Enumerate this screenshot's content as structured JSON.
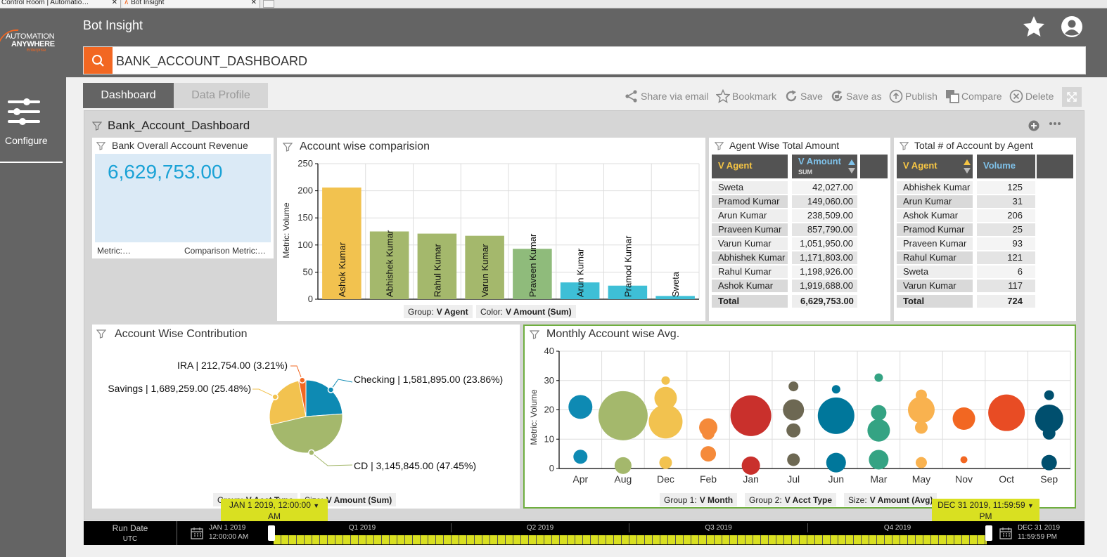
{
  "browser": {
    "tabs": [
      "Control Room | Automatio…",
      "Bot Insight"
    ]
  },
  "header": {
    "app_title": "Bot Insight",
    "search_value": "BANK_ACCOUNT_DASHBOARD",
    "logo_line1": "AUTOMATION",
    "logo_line2": "ANYWHERE",
    "logo_line3": "Enterprise"
  },
  "sidebar": {
    "configure_label": "Configure"
  },
  "tabs": {
    "dashboard": "Dashboard",
    "data_profile": "Data Profile"
  },
  "toolbar": {
    "share": "Share via email",
    "bookmark": "Bookmark",
    "save": "Save",
    "save_as": "Save as",
    "publish": "Publish",
    "compare": "Compare",
    "delete": "Delete"
  },
  "dashboard": {
    "title": "Bank_Account_Dashboard"
  },
  "kpi": {
    "title": "Bank Overall Account Revenue",
    "value": "6,629,753.00",
    "metric": "Metric:…",
    "comparison": "Comparison Metric:…"
  },
  "bar_panel": {
    "title": "Account wise comparision",
    "legend_group_label": "Group:",
    "legend_group_value": "V Agent",
    "legend_color_label": "Color:",
    "legend_color_value": "V Amount (Sum)"
  },
  "agent_table": {
    "title": "Agent Wise Total Amount",
    "col1": "V Agent",
    "col2": "V Amount",
    "col2_sub": "SUM",
    "rows": [
      [
        "Sweta",
        "42,027.00"
      ],
      [
        "Pramod Kumar",
        "149,060.00"
      ],
      [
        "Arun Kumar",
        "238,509.00"
      ],
      [
        "Praveen Kumar",
        "857,790.00"
      ],
      [
        "Varun Kumar",
        "1,051,950.00"
      ],
      [
        "Abhishek Kumar",
        "1,171,803.00"
      ],
      [
        "Rahul Kumar",
        "1,198,926.00"
      ],
      [
        "Ashok Kumar",
        "1,919,688.00"
      ]
    ],
    "total_label": "Total",
    "total_value": "6,629,753.00"
  },
  "count_table": {
    "title": "Total # of Account by Agent",
    "col1": "V Agent",
    "col2": "Volume",
    "rows": [
      [
        "Abhishek Kumar",
        "125"
      ],
      [
        "Arun Kumar",
        "31"
      ],
      [
        "Ashok Kumar",
        "206"
      ],
      [
        "Pramod Kumar",
        "25"
      ],
      [
        "Praveen Kumar",
        "93"
      ],
      [
        "Rahul Kumar",
        "121"
      ],
      [
        "Sweta",
        "6"
      ],
      [
        "Varun Kumar",
        "117"
      ]
    ],
    "total_label": "Total",
    "total_value": "724"
  },
  "pie_panel": {
    "title": "Account Wise Contribution",
    "legend_group_label": "Group:",
    "legend_group_value": "V Acct Type",
    "legend_size_label": "Size:",
    "legend_size_value": "V Amount (Sum)"
  },
  "bubble_panel": {
    "title": "Monthly Account wise Avg.",
    "legend_g1_label": "Group 1:",
    "legend_g1_value": "V Month",
    "legend_g2_label": "Group 2:",
    "legend_g2_value": "V Acct Type",
    "legend_size_label": "Size:",
    "legend_size_value": "V Amount (Avg)"
  },
  "timeline": {
    "run_date": "Run Date",
    "utc": "UTC",
    "start_date": "JAN 1 2019",
    "start_time": "12:00:00 AM",
    "end_date": "DEC 31 2019",
    "end_time": "11:59:59 PM",
    "start_flag_1": "JAN 1 2019, 12:00:00",
    "start_flag_2": "AM",
    "end_flag_1": "DEC 31 2019, 11:59:59",
    "end_flag_2": "PM",
    "quarters": [
      "Q1 2019",
      "Q2 2019",
      "Q3 2019",
      "Q4 2019"
    ]
  },
  "colors": {
    "orange": "#f26722",
    "bar_yellow": "#f2c24f",
    "bar_green": "#a4b86c",
    "bar_green2": "#8fbb7b",
    "bar_cyan": "#3ebfd6",
    "timeline_yellow": "#d9e021"
  },
  "chart_data": [
    {
      "type": "bar",
      "title": "Account wise comparision",
      "ylabel": "Metric: Volume",
      "ylim": [
        0,
        250
      ],
      "yticks": [
        0,
        50,
        100,
        150,
        200,
        250
      ],
      "categories": [
        "Ashok Kumar",
        "Abhishek Kumar",
        "Rahul Kumar",
        "Varun Kumar",
        "Praveen Kumar",
        "Arun Kumar",
        "Pramod Kumar",
        "Sweta"
      ],
      "values": [
        206,
        125,
        121,
        117,
        93,
        31,
        25,
        6
      ]
    },
    {
      "type": "pie",
      "title": "Account Wise Contribution",
      "slices": [
        {
          "label": "Checking | 1,581,895.00 (23.86%)",
          "value": 1581895,
          "pct": 23.86,
          "color": "#0e8ab3"
        },
        {
          "label": "CD | 3,145,845.00 (47.45%)",
          "value": 3145845,
          "pct": 47.45,
          "color": "#a4b86c"
        },
        {
          "label": "Savings | 1,689,259.00 (25.48%)",
          "value": 1689259,
          "pct": 25.48,
          "color": "#f2c24f"
        },
        {
          "label": "IRA | 212,754.00 (3.21%)",
          "value": 212754,
          "pct": 3.21,
          "color": "#f26722"
        }
      ]
    },
    {
      "type": "scatter",
      "title": "Monthly Account wise Avg.",
      "ylabel": "Metric: Volume",
      "ylim": [
        0,
        40
      ],
      "yticks": [
        0,
        10,
        20,
        30,
        40
      ],
      "categories": [
        "Apr",
        "Aug",
        "Dec",
        "Feb",
        "Jan",
        "Jul",
        "Jun",
        "Mar",
        "May",
        "Nov",
        "Oct",
        "Sep"
      ],
      "points": [
        {
          "cat": "Apr",
          "y": 21,
          "size": 17,
          "color": "#0e8ab3"
        },
        {
          "cat": "Apr",
          "y": 4,
          "size": 10,
          "color": "#0e8ab3"
        },
        {
          "cat": "Aug",
          "y": 18,
          "size": 35,
          "color": "#a4b86c"
        },
        {
          "cat": "Aug",
          "y": 1,
          "size": 12,
          "color": "#a4b86c"
        },
        {
          "cat": "Dec",
          "y": 30,
          "size": 6,
          "color": "#f2c24f"
        },
        {
          "cat": "Dec",
          "y": 24,
          "size": 16,
          "color": "#f2c24f"
        },
        {
          "cat": "Dec",
          "y": 16,
          "size": 24,
          "color": "#f2c24f"
        },
        {
          "cat": "Dec",
          "y": 2,
          "size": 9,
          "color": "#f2c24f"
        },
        {
          "cat": "Feb",
          "y": 14,
          "size": 13,
          "color": "#f58a3a"
        },
        {
          "cat": "Feb",
          "y": 12,
          "size": 9,
          "color": "#f58a3a"
        },
        {
          "cat": "Feb",
          "y": 5,
          "size": 11,
          "color": "#f58a3a"
        },
        {
          "cat": "Jan",
          "y": 18,
          "size": 29,
          "color": "#c9302c"
        },
        {
          "cat": "Jan",
          "y": 1,
          "size": 13,
          "color": "#c9302c"
        },
        {
          "cat": "Jul",
          "y": 28,
          "size": 7,
          "color": "#6d6853"
        },
        {
          "cat": "Jul",
          "y": 20,
          "size": 15,
          "color": "#6d6853"
        },
        {
          "cat": "Jul",
          "y": 13,
          "size": 10,
          "color": "#6d6853"
        },
        {
          "cat": "Jul",
          "y": 3,
          "size": 9,
          "color": "#6d6853"
        },
        {
          "cat": "Jun",
          "y": 27,
          "size": 6,
          "color": "#00779b"
        },
        {
          "cat": "Jun",
          "y": 18,
          "size": 26,
          "color": "#00779b"
        },
        {
          "cat": "Jun",
          "y": 2,
          "size": 14,
          "color": "#00779b"
        },
        {
          "cat": "Mar",
          "y": 31,
          "size": 6,
          "color": "#34a383"
        },
        {
          "cat": "Mar",
          "y": 19,
          "size": 11,
          "color": "#34a383"
        },
        {
          "cat": "Mar",
          "y": 13,
          "size": 16,
          "color": "#34a383"
        },
        {
          "cat": "Mar",
          "y": 3,
          "size": 14,
          "color": "#34a383"
        },
        {
          "cat": "May",
          "y": 25,
          "size": 8,
          "color": "#f9b24f"
        },
        {
          "cat": "May",
          "y": 20,
          "size": 19,
          "color": "#f9b24f"
        },
        {
          "cat": "May",
          "y": 14,
          "size": 9,
          "color": "#f9b24f"
        },
        {
          "cat": "May",
          "y": 2,
          "size": 8,
          "color": "#f9b24f"
        },
        {
          "cat": "Nov",
          "y": 17,
          "size": 16,
          "color": "#f26722"
        },
        {
          "cat": "Nov",
          "y": 3,
          "size": 5,
          "color": "#f26722"
        },
        {
          "cat": "Oct",
          "y": 19,
          "size": 26,
          "color": "#e84c24"
        },
        {
          "cat": "Sep",
          "y": 25,
          "size": 7,
          "color": "#004f6e"
        },
        {
          "cat": "Sep",
          "y": 17,
          "size": 20,
          "color": "#004f6e"
        },
        {
          "cat": "Sep",
          "y": 12,
          "size": 9,
          "color": "#004f6e"
        },
        {
          "cat": "Sep",
          "y": 2,
          "size": 11,
          "color": "#004f6e"
        }
      ]
    }
  ]
}
